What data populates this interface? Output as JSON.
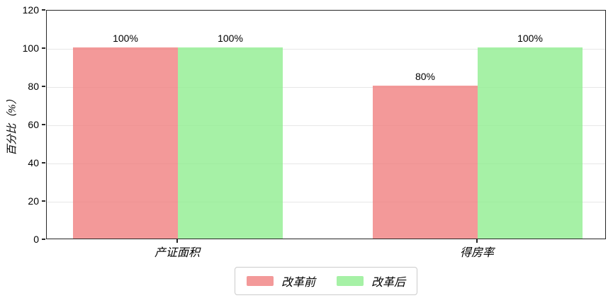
{
  "chart_data": {
    "type": "bar",
    "title": "",
    "xlabel": "",
    "ylabel": "百分比（%）",
    "categories": [
      "产证面积",
      "得房率"
    ],
    "series": [
      {
        "name": "改革前",
        "color": "#F08080",
        "alpha": 0.8,
        "values": [
          100,
          80
        ],
        "labels": [
          "100%",
          "80%"
        ]
      },
      {
        "name": "改革后",
        "color": "#90EE90",
        "alpha": 0.8,
        "values": [
          100,
          100
        ],
        "labels": [
          "100%",
          "100%"
        ]
      }
    ],
    "ylim": [
      0,
      120
    ],
    "yticks": [
      0,
      20,
      40,
      60,
      80,
      100,
      120
    ],
    "grid": true,
    "frame": true,
    "legend_position": "bottom-center"
  },
  "colors": {
    "axis": "#262626",
    "gridline": "#e7e7e7",
    "legend_border": "#cccccc",
    "background": "#ffffff"
  }
}
